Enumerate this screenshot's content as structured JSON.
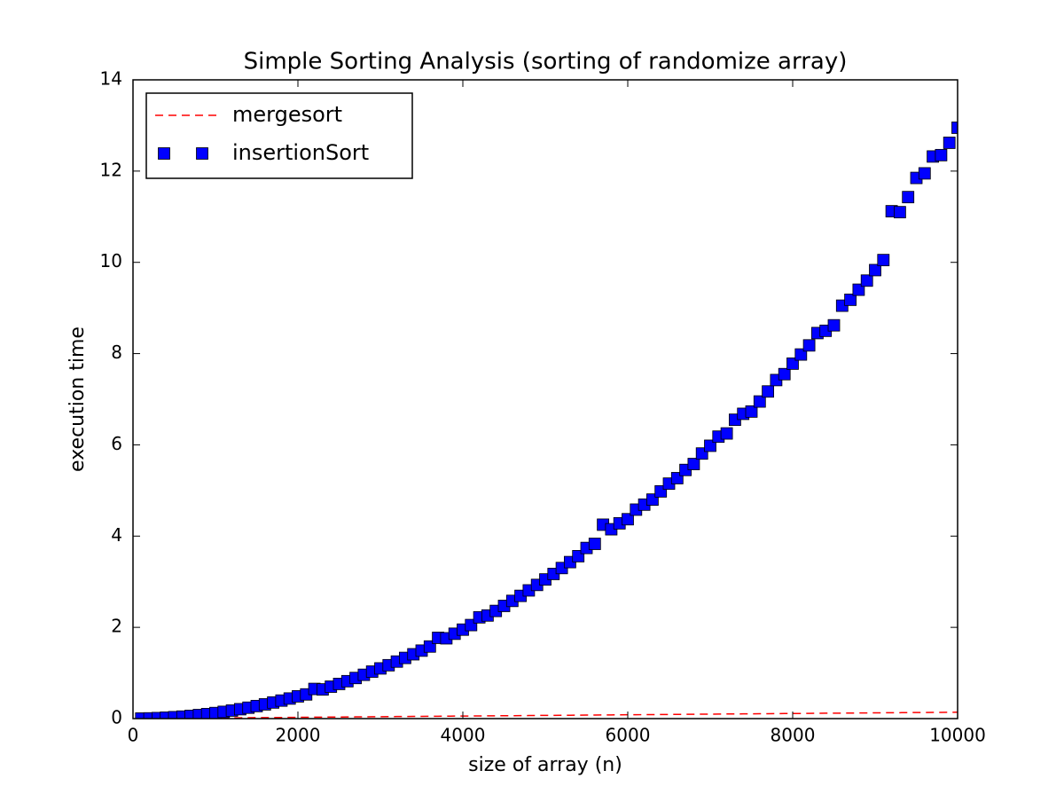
{
  "chart_data": {
    "type": "line",
    "title": "Simple Sorting Analysis (sorting of randomize array)",
    "xlabel": "size of array (n)",
    "ylabel": "execution time",
    "x": [
      100,
      200,
      300,
      400,
      500,
      600,
      700,
      800,
      900,
      1000,
      1100,
      1200,
      1300,
      1400,
      1500,
      1600,
      1700,
      1800,
      1900,
      2000,
      2100,
      2200,
      2300,
      2400,
      2500,
      2600,
      2700,
      2800,
      2900,
      3000,
      3100,
      3200,
      3300,
      3400,
      3500,
      3600,
      3700,
      3800,
      3900,
      4000,
      4100,
      4200,
      4300,
      4400,
      4500,
      4600,
      4700,
      4800,
      4900,
      5000,
      5100,
      5200,
      5300,
      5400,
      5500,
      5600,
      5700,
      5800,
      5900,
      6000,
      6100,
      6200,
      6300,
      6400,
      6500,
      6600,
      6700,
      6800,
      6900,
      7000,
      7100,
      7200,
      7300,
      7400,
      7500,
      7600,
      7700,
      7800,
      7900,
      8000,
      8100,
      8200,
      8300,
      8400,
      8500,
      8600,
      8700,
      8800,
      8900,
      9000,
      9100,
      9200,
      9300,
      9400,
      9500,
      9600,
      9700,
      9800,
      9900,
      10000
    ],
    "series": [
      {
        "name": "mergesort",
        "color": "#ff0000",
        "linestyle": "--",
        "marker": null,
        "values": [
          0.001,
          0.003,
          0.004,
          0.006,
          0.007,
          0.008,
          0.01,
          0.011,
          0.013,
          0.014,
          0.015,
          0.017,
          0.018,
          0.02,
          0.021,
          0.022,
          0.024,
          0.025,
          0.027,
          0.028,
          0.029,
          0.031,
          0.032,
          0.034,
          0.035,
          0.036,
          0.038,
          0.039,
          0.041,
          0.042,
          0.043,
          0.045,
          0.046,
          0.048,
          0.049,
          0.05,
          0.052,
          0.053,
          0.055,
          0.056,
          0.057,
          0.059,
          0.06,
          0.062,
          0.063,
          0.064,
          0.066,
          0.067,
          0.069,
          0.07,
          0.071,
          0.073,
          0.074,
          0.076,
          0.077,
          0.078,
          0.08,
          0.081,
          0.083,
          0.084,
          0.085,
          0.087,
          0.088,
          0.09,
          0.091,
          0.092,
          0.094,
          0.095,
          0.097,
          0.098,
          0.099,
          0.101,
          0.102,
          0.104,
          0.105,
          0.106,
          0.108,
          0.109,
          0.111,
          0.112,
          0.113,
          0.115,
          0.116,
          0.118,
          0.119,
          0.12,
          0.122,
          0.123,
          0.125,
          0.126,
          0.127,
          0.129,
          0.13,
          0.132,
          0.133,
          0.134,
          0.136,
          0.137,
          0.139,
          0.14
        ]
      },
      {
        "name": "insertionSort",
        "color": "#0000ff",
        "linestyle": null,
        "marker": "s",
        "values": [
          0.001,
          0.005,
          0.011,
          0.02,
          0.031,
          0.044,
          0.06,
          0.078,
          0.099,
          0.122,
          0.148,
          0.176,
          0.206,
          0.239,
          0.275,
          0.312,
          0.353,
          0.395,
          0.44,
          0.488,
          0.53,
          0.65,
          0.64,
          0.7,
          0.76,
          0.82,
          0.89,
          0.96,
          1.03,
          1.1,
          1.17,
          1.25,
          1.33,
          1.41,
          1.49,
          1.58,
          1.77,
          1.76,
          1.86,
          1.95,
          2.05,
          2.22,
          2.26,
          2.36,
          2.47,
          2.58,
          2.69,
          2.81,
          2.93,
          3.05,
          3.17,
          3.3,
          3.43,
          3.56,
          3.74,
          3.83,
          4.25,
          4.15,
          4.28,
          4.37,
          4.58,
          4.69,
          4.8,
          4.98,
          5.15,
          5.27,
          5.45,
          5.58,
          5.81,
          5.98,
          6.18,
          6.25,
          6.55,
          6.68,
          6.73,
          6.95,
          7.17,
          7.42,
          7.55,
          7.78,
          7.98,
          8.18,
          8.45,
          8.5,
          8.62,
          9.05,
          9.18,
          9.4,
          9.6,
          9.83,
          10.05,
          11.12,
          11.1,
          11.43,
          11.85,
          11.95,
          12.32,
          12.35,
          12.62,
          12.95
        ]
      }
    ],
    "xlim": [
      0,
      10000
    ],
    "xticks": [
      0,
      2000,
      4000,
      6000,
      8000,
      10000
    ],
    "ylim": [
      0,
      14
    ],
    "yticks": [
      0,
      2,
      4,
      6,
      8,
      10,
      12,
      14
    ],
    "grid": false,
    "legend": "upper left"
  }
}
